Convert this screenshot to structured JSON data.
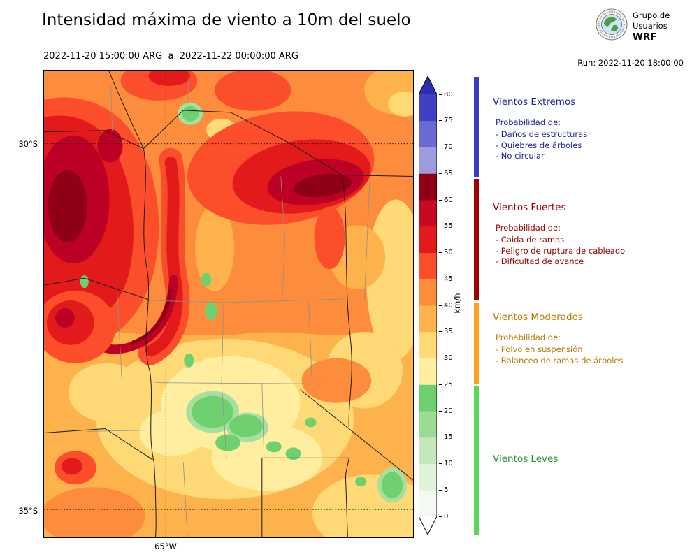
{
  "header": {
    "title": "Intensidad máxima de viento a 10m del suelo",
    "date_range": "2022-11-20 15:00:00 ARG  a  2022-11-22 00:00:00 ARG",
    "run_label": "Run: 2022-11-20 18:00:00",
    "logo_text": {
      "line1": "Grupo de",
      "line2": "Usuarios",
      "line3": "WRF"
    }
  },
  "map": {
    "lat_top_label": "30°S",
    "lat_bottom_label": "35°S",
    "lon_label": "65°W"
  },
  "colorbar": {
    "unit": "km/h",
    "min": 0,
    "max": 80,
    "tick_step": 5,
    "ticks": [
      0,
      5,
      10,
      15,
      20,
      25,
      30,
      35,
      40,
      45,
      50,
      55,
      60,
      65,
      70,
      75,
      80
    ],
    "segment_colors": [
      "#f4faf1",
      "#dff3d8",
      "#c2e8bb",
      "#9cdb94",
      "#6ecf6e",
      "#ffeda0",
      "#fed976",
      "#feb24c",
      "#fd8d3c",
      "#fc4e2a",
      "#e31a1c",
      "#c40b20",
      "#8f0016",
      "#9e9ade",
      "#6a6ad4",
      "#4040c4"
    ],
    "over_color": "#2d2db4",
    "under_color": "#ffffff"
  },
  "legend": {
    "categories": [
      {
        "name": "Vientos Extremos",
        "color": "#22229a",
        "bar_color": "#3b3bc8",
        "prob_label": "Probabilidad de:",
        "items": [
          "- Daños de estructuras",
          "- Quiebres de árboles",
          "- No circular"
        ]
      },
      {
        "name": "Vientos Fuertes",
        "color": "#9b0000",
        "bar_color": "#a00000",
        "prob_label": "Probabilidad de:",
        "items": [
          "- Caida de ramas",
          "- Peligro de ruptura de cableado",
          "- Dificultad de avance"
        ]
      },
      {
        "name": "Vientos Moderados",
        "color": "#bb7a00",
        "bar_color": "#ff9e1b",
        "prob_label": "Probabilidad de:",
        "items": [
          "- Polvo en suspensión",
          "- Balanceo de ramas de árboles"
        ]
      },
      {
        "name": "Vientos Leves",
        "color": "#2e8b2e",
        "bar_color": "#57d957",
        "prob_label": "",
        "items": []
      }
    ]
  }
}
